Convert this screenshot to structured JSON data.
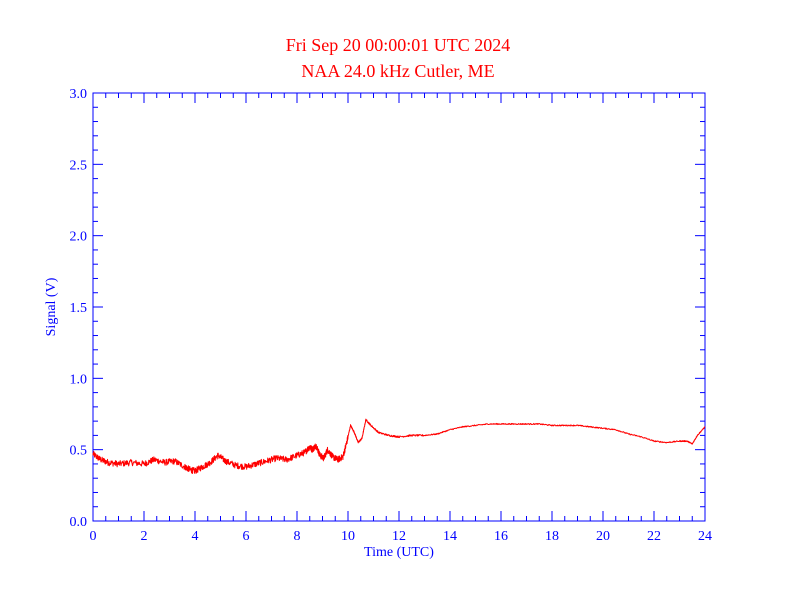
{
  "chart_data": {
    "type": "line",
    "title": "Fri Sep 20 00:00:01 UTC 2024",
    "subtitle": "NAA 24.0 kHz Cutler, ME",
    "xlabel": "Time (UTC)",
    "ylabel": "Signal (V)",
    "xlim": [
      0,
      24
    ],
    "ylim": [
      0.0,
      3.0
    ],
    "x_ticks": [
      "0",
      "2",
      "4",
      "6",
      "8",
      "10",
      "12",
      "14",
      "16",
      "18",
      "20",
      "22",
      "24"
    ],
    "y_ticks": [
      "0.0",
      "0.5",
      "1.0",
      "1.5",
      "2.0",
      "2.5",
      "3.0"
    ],
    "grid": false,
    "colors": {
      "title": "#ff0000",
      "axes": "#0000ff",
      "series": "#ff0000",
      "background": "#ffffff"
    },
    "series": [
      {
        "x": [
          0,
          0.3,
          0.6,
          1.0,
          1.5,
          2.0,
          2.4,
          2.8,
          3.2,
          3.6,
          3.8,
          4.0,
          4.3,
          4.6,
          4.9,
          5.2,
          5.6,
          6.0,
          6.4,
          6.8,
          7.2,
          7.6,
          8.0,
          8.3,
          8.5,
          8.6,
          8.75,
          8.9,
          9.05,
          9.2,
          9.4,
          9.6,
          9.8,
          9.95,
          10.1,
          10.25,
          10.4,
          10.55,
          10.7,
          10.9,
          11.2,
          11.6,
          12.0,
          12.5,
          13.0,
          13.5,
          14.0,
          14.5,
          15.0,
          15.5,
          16.0,
          16.5,
          17.0,
          17.5,
          18.0,
          18.5,
          19.0,
          19.5,
          20.0,
          20.5,
          21.0,
          21.5,
          22.0,
          22.5,
          23.0,
          23.3,
          23.5,
          23.7,
          24.0
        ],
        "y": [
          0.47,
          0.43,
          0.41,
          0.4,
          0.41,
          0.4,
          0.43,
          0.41,
          0.42,
          0.38,
          0.36,
          0.35,
          0.38,
          0.41,
          0.46,
          0.42,
          0.39,
          0.38,
          0.4,
          0.42,
          0.44,
          0.43,
          0.46,
          0.48,
          0.52,
          0.5,
          0.53,
          0.46,
          0.44,
          0.5,
          0.45,
          0.43,
          0.45,
          0.55,
          0.67,
          0.62,
          0.55,
          0.58,
          0.71,
          0.67,
          0.62,
          0.6,
          0.59,
          0.6,
          0.6,
          0.61,
          0.64,
          0.66,
          0.67,
          0.68,
          0.68,
          0.68,
          0.68,
          0.68,
          0.67,
          0.67,
          0.67,
          0.66,
          0.65,
          0.64,
          0.61,
          0.59,
          0.56,
          0.55,
          0.56,
          0.56,
          0.54,
          0.6,
          0.66
        ]
      }
    ]
  }
}
